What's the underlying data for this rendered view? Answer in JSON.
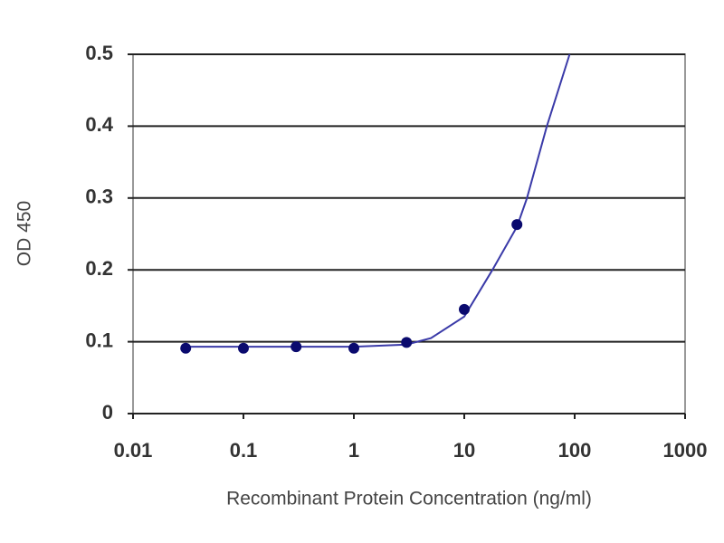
{
  "chart_data": {
    "type": "scatter",
    "xlabel": "Recombinant Protein Concentration (ng/ml)",
    "ylabel": "OD 450",
    "xscale": "log",
    "xlim": [
      0.01,
      1000
    ],
    "xticks": [
      0.01,
      0.1,
      1,
      10,
      100,
      1000
    ],
    "ylim": [
      0,
      0.5
    ],
    "yticks": [
      0,
      0.1,
      0.2,
      0.3,
      0.4,
      0.5
    ],
    "grid": true,
    "series": [
      {
        "mode": "markers",
        "color": "#0a0a6e",
        "x": [
          0.03,
          0.1,
          0.3,
          1,
          3,
          10,
          30
        ],
        "values": [
          0.091,
          0.091,
          0.093,
          0.091,
          0.099,
          0.145,
          0.263
        ]
      },
      {
        "mode": "line",
        "color": "#3a3aa8",
        "x": [
          0.03,
          0.1,
          0.3,
          1,
          3,
          5,
          10,
          18,
          30,
          37,
          56,
          90
        ],
        "values": [
          0.093,
          0.093,
          0.093,
          0.093,
          0.096,
          0.105,
          0.135,
          0.2,
          0.26,
          0.3,
          0.4,
          0.5
        ]
      }
    ]
  }
}
